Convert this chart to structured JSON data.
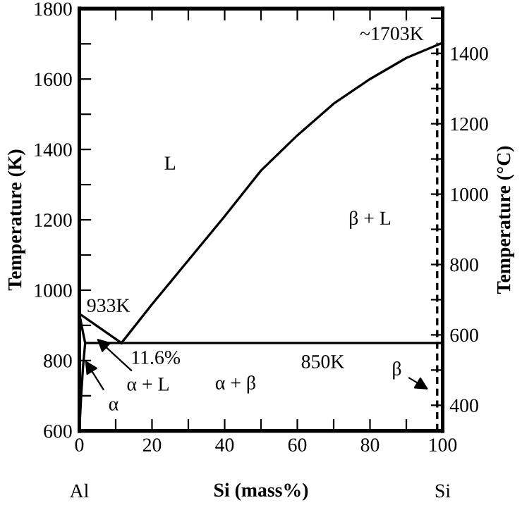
{
  "chart_data": {
    "type": "line",
    "xlabel": "Si (mass%)",
    "ylabel": "Temperature (K)",
    "y2label": "Temperature (°C)",
    "series": [
      {
        "color": "#000000",
        "x": [
          0,
          11.6
        ],
        "values": [
          933,
          850
        ]
      },
      {
        "color": "#000000",
        "x": [
          11.6,
          20,
          30,
          40,
          50,
          60,
          70,
          80,
          90,
          100
        ],
        "values": [
          850,
          960,
          1085,
          1210,
          1340,
          1440,
          1530,
          1600,
          1660,
          1703
        ]
      },
      {
        "color": "#000000",
        "x": [
          1.6,
          100
        ],
        "values": [
          850,
          850
        ]
      },
      {
        "color": "#000000",
        "x": [
          0,
          0.8,
          1.6,
          1.0,
          0.5,
          0
        ],
        "values": [
          933,
          890,
          850,
          780,
          700,
          600
        ]
      },
      {
        "color": "#000000",
        "x": [
          98.5,
          98.5
        ],
        "values": [
          600,
          1703
        ],
        "line_style": "dashed"
      }
    ],
    "xlim": [
      0,
      100
    ],
    "xticks": [
      0,
      {
        "value": 10,
        "label": null
      },
      20,
      {
        "value": 30,
        "label": null
      },
      40,
      {
        "value": 50,
        "label": null
      },
      60,
      {
        "value": 70,
        "label": null
      },
      80,
      {
        "value": 90,
        "label": null
      },
      100
    ],
    "ylim": [
      600,
      1800
    ],
    "yticks": [
      600,
      {
        "value": 700,
        "label": null
      },
      800,
      {
        "value": 900,
        "label": null
      },
      1000,
      {
        "value": 1100,
        "label": null
      },
      1200,
      {
        "value": 1300,
        "label": null
      },
      1400,
      {
        "value": 1500,
        "label": null
      },
      1600,
      {
        "value": 1700,
        "label": null
      },
      1800
    ],
    "y2lim": [
      327,
      1527
    ],
    "y2ticks": [
      400,
      {
        "value": 500,
        "label": null
      },
      600,
      {
        "value": 700,
        "label": null
      },
      800,
      {
        "value": 900,
        "label": null
      },
      1000,
      {
        "value": 1100,
        "label": null
      },
      1200,
      {
        "value": 1300,
        "label": null
      },
      1400,
      {
        "value": 1500,
        "label": null
      }
    ],
    "grid": false,
    "legend": false,
    "marker": "none",
    "line_style": "solid",
    "annotations": [
      "L",
      "β + L",
      "~1703K",
      "933K",
      "11.6%",
      {
        "text": "α + L",
        "x": 4,
        "y": 870
      },
      {
        "text": "α",
        "x": 1,
        "y": 810
      },
      "α + β",
      "850K",
      {
        "text": "β",
        "x": 97,
        "y": 712
      },
      "Al",
      "Si"
    ]
  }
}
